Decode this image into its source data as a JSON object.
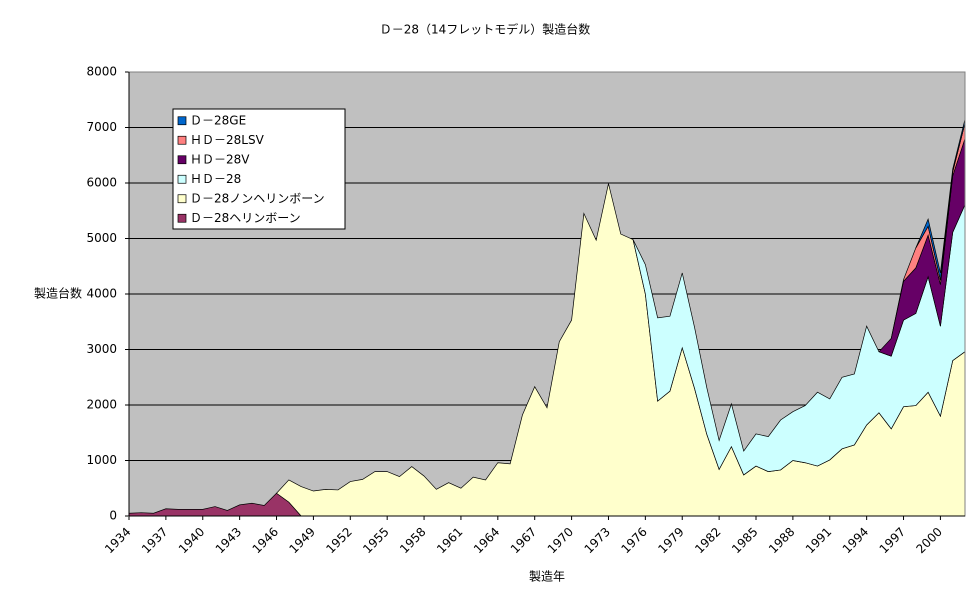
{
  "chart_data": {
    "type": "stacked-area",
    "title": "Ｄ－28（14フレットモデル）製造台数",
    "x_label": "製造年",
    "y_label": "製造台数",
    "x": [
      1934,
      1935,
      1936,
      1937,
      1938,
      1939,
      1940,
      1941,
      1942,
      1943,
      1944,
      1945,
      1946,
      1947,
      1948,
      1949,
      1950,
      1951,
      1952,
      1953,
      1954,
      1955,
      1956,
      1957,
      1958,
      1959,
      1960,
      1961,
      1962,
      1963,
      1964,
      1965,
      1966,
      1967,
      1968,
      1969,
      1970,
      1971,
      1972,
      1973,
      1974,
      1975,
      1976,
      1977,
      1978,
      1979,
      1980,
      1981,
      1982,
      1983,
      1984,
      1985,
      1986,
      1987,
      1988,
      1989,
      1990,
      1991,
      1992,
      1993,
      1994,
      1995,
      1996,
      1997,
      1998,
      1999,
      2000,
      2001,
      2002
    ],
    "xlim": [
      1934,
      2002
    ],
    "xticks": [
      1934,
      1937,
      1940,
      1943,
      1946,
      1949,
      1952,
      1955,
      1958,
      1961,
      1964,
      1967,
      1970,
      1973,
      1976,
      1979,
      1982,
      1985,
      1988,
      1991,
      1994,
      1997,
      2000
    ],
    "ylim": [
      0,
      8000
    ],
    "yticks": [
      0,
      1000,
      2000,
      3000,
      4000,
      5000,
      6000,
      7000,
      8000
    ],
    "grid": true,
    "legend": "upper left",
    "series": [
      {
        "name": "Ｄ－28ヘリンボーン",
        "color": "#993366",
        "values": [
          50,
          60,
          50,
          130,
          120,
          120,
          120,
          170,
          100,
          200,
          230,
          190,
          410,
          250,
          0,
          null,
          null,
          null,
          null,
          null,
          null,
          null,
          null,
          null,
          null,
          null,
          null,
          null,
          null,
          null,
          null,
          null,
          null,
          null,
          null,
          null,
          null,
          null,
          null,
          null,
          null,
          null,
          null,
          null,
          null,
          null,
          null,
          null,
          null,
          null,
          null,
          null,
          null,
          null,
          null,
          null,
          null,
          null,
          null,
          null,
          null,
          null,
          null,
          null,
          null,
          null,
          null,
          null,
          null
        ]
      },
      {
        "name": "Ｄ－28ノンヘリンボーン",
        "color": "#ffffcc",
        "values": [
          null,
          null,
          null,
          null,
          null,
          null,
          null,
          null,
          null,
          null,
          null,
          null,
          0,
          400,
          530,
          450,
          480,
          470,
          620,
          660,
          800,
          800,
          710,
          890,
          720,
          480,
          600,
          500,
          700,
          650,
          960,
          940,
          1820,
          2330,
          1950,
          3140,
          3530,
          5450,
          4970,
          5990,
          5080,
          4980,
          4000,
          2070,
          2250,
          3030,
          2300,
          1470,
          840,
          1250,
          740,
          900,
          800,
          830,
          1000,
          960,
          900,
          1010,
          1210,
          1280,
          1640,
          1860,
          1570,
          1970,
          1990,
          2230,
          1800,
          2800,
          2960
        ]
      },
      {
        "name": "ＨＤ－28",
        "color": "#ccffff",
        "values": [
          null,
          null,
          null,
          null,
          null,
          null,
          null,
          null,
          null,
          null,
          null,
          null,
          null,
          null,
          null,
          null,
          null,
          null,
          null,
          null,
          null,
          null,
          null,
          null,
          null,
          null,
          null,
          null,
          null,
          null,
          null,
          null,
          null,
          null,
          null,
          null,
          null,
          null,
          null,
          null,
          null,
          0,
          530,
          1500,
          1350,
          1350,
          1100,
          840,
          520,
          770,
          430,
          580,
          630,
          900,
          880,
          1030,
          1330,
          1100,
          1290,
          1280,
          1780,
          1100,
          1310,
          1560,
          1660,
          2080,
          1620,
          2310,
          2650
        ]
      },
      {
        "name": "ＨＤ－28V",
        "color": "#660066",
        "values": [
          null,
          null,
          null,
          null,
          null,
          null,
          null,
          null,
          null,
          null,
          null,
          null,
          null,
          null,
          null,
          null,
          null,
          null,
          null,
          null,
          null,
          null,
          null,
          null,
          null,
          null,
          null,
          null,
          null,
          null,
          null,
          null,
          null,
          null,
          null,
          null,
          null,
          null,
          null,
          null,
          null,
          null,
          null,
          null,
          null,
          null,
          null,
          null,
          null,
          null,
          null,
          null,
          null,
          null,
          null,
          null,
          null,
          null,
          null,
          null,
          null,
          0,
          320,
          700,
          820,
          750,
          750,
          1020,
          1190
        ]
      },
      {
        "name": "ＨＤ－28LSV",
        "color": "#ff8080",
        "values": [
          null,
          null,
          null,
          null,
          null,
          null,
          null,
          null,
          null,
          null,
          null,
          null,
          null,
          null,
          null,
          null,
          null,
          null,
          null,
          null,
          null,
          null,
          null,
          null,
          null,
          null,
          null,
          null,
          null,
          null,
          null,
          null,
          null,
          null,
          null,
          null,
          null,
          null,
          null,
          null,
          null,
          null,
          null,
          null,
          null,
          null,
          null,
          null,
          null,
          null,
          null,
          null,
          null,
          null,
          null,
          null,
          null,
          null,
          null,
          null,
          null,
          null,
          0,
          30,
          360,
          160,
          80,
          70,
          280
        ]
      },
      {
        "name": "Ｄ－28GE",
        "color": "#0066cc",
        "values": [
          null,
          null,
          null,
          null,
          null,
          null,
          null,
          null,
          null,
          null,
          null,
          null,
          null,
          null,
          null,
          null,
          null,
          null,
          null,
          null,
          null,
          null,
          null,
          null,
          null,
          null,
          null,
          null,
          null,
          null,
          null,
          null,
          null,
          null,
          null,
          null,
          null,
          null,
          null,
          null,
          null,
          null,
          null,
          null,
          null,
          null,
          null,
          null,
          null,
          null,
          null,
          null,
          null,
          null,
          null,
          null,
          null,
          null,
          null,
          null,
          null,
          null,
          null,
          null,
          0,
          130,
          130,
          50,
          70
        ]
      }
    ]
  }
}
